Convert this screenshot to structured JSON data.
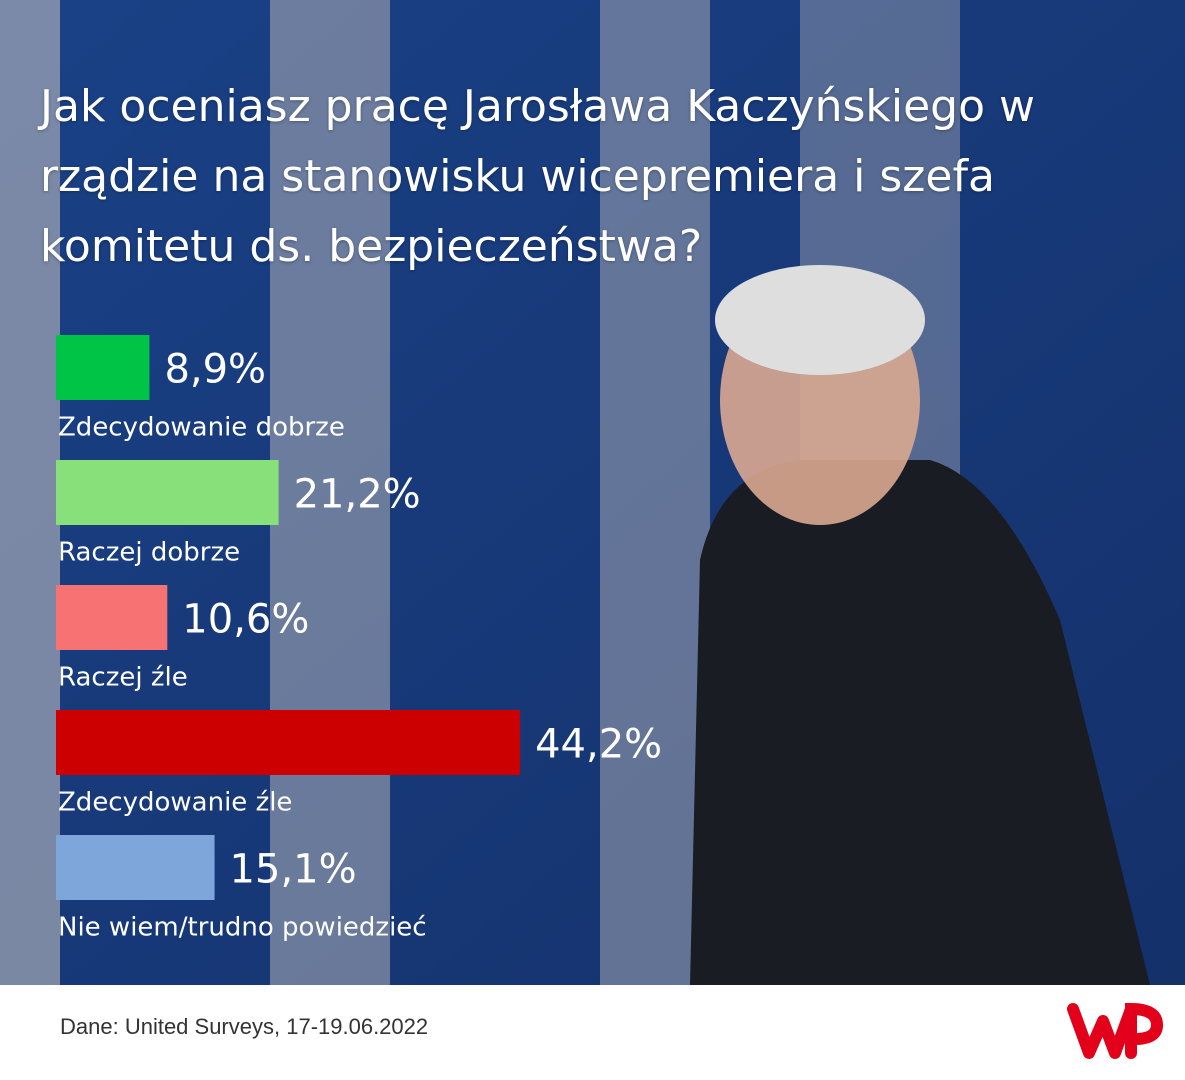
{
  "chart_data": {
    "type": "bar",
    "title": "Jak oceniasz pracę Jarosława Kaczyńskiego w rządzie na stanowisku wicepremiera i szefa komitetu ds. bezpieczeństwa?",
    "categories": [
      "Zdecydowanie dobrze",
      "Raczej dobrze",
      "Raczej źle",
      "Zdecydowanie źle",
      "Nie wiem/trudno powiedzieć"
    ],
    "values": [
      8.9,
      21.2,
      10.6,
      44.2,
      15.1
    ],
    "value_labels": [
      "8,9%",
      "21,2%",
      "10,6%",
      "44,2%",
      "15,1%"
    ],
    "colors": [
      "#00c445",
      "#88e07a",
      "#f77373",
      "#cc0000",
      "#7ea6da"
    ],
    "source": "Dane: United Surveys, 17-19.06.2022"
  }
}
